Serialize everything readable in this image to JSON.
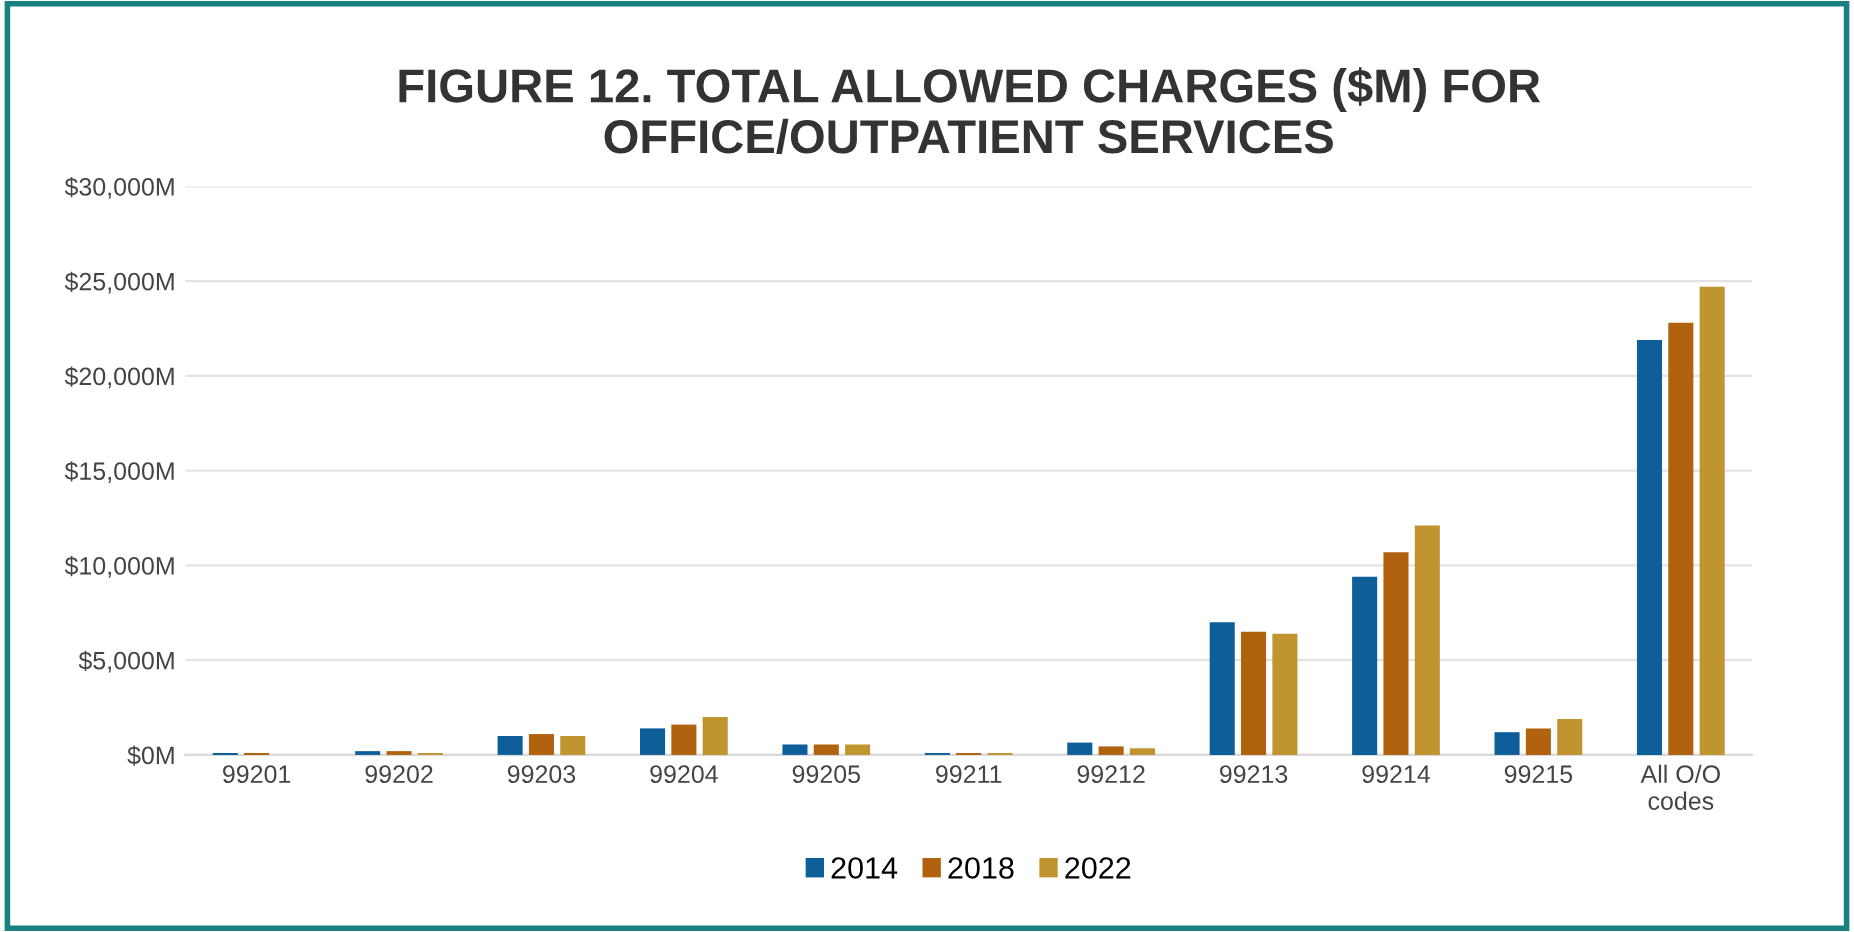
{
  "chart_data": {
    "type": "bar",
    "title": "FIGURE 12. TOTAL ALLOWED CHARGES ($M) FOR\nOFFICE/OUTPATIENT SERVICES",
    "categories": [
      "99201",
      "99202",
      "99203",
      "99204",
      "99205",
      "99211",
      "99212",
      "99213",
      "99214",
      "99215",
      "All O/O\ncodes"
    ],
    "series": [
      {
        "name": "2014",
        "color": "#0e5f99",
        "values": [
          100,
          200,
          1000,
          1400,
          550,
          100,
          650,
          7000,
          9400,
          1200,
          21900
        ]
      },
      {
        "name": "2018",
        "color": "#b0620f",
        "values": [
          100,
          200,
          1100,
          1600,
          550,
          100,
          450,
          6500,
          10700,
          1400,
          22800
        ]
      },
      {
        "name": "2022",
        "color": "#c0952f",
        "values": [
          0,
          100,
          1000,
          2000,
          550,
          100,
          350,
          6400,
          12100,
          1900,
          24700
        ]
      }
    ],
    "ylim": [
      0,
      30000
    ],
    "yticks": [
      {
        "value": 0,
        "label": "$0M"
      },
      {
        "value": 5000,
        "label": "$5,000M"
      },
      {
        "value": 10000,
        "label": "$10,000M"
      },
      {
        "value": 15000,
        "label": "$15,000M"
      },
      {
        "value": 20000,
        "label": "$20,000M"
      },
      {
        "value": 25000,
        "label": "$25,000M"
      },
      {
        "value": 30000,
        "label": "$30,000M"
      }
    ],
    "grid": "y",
    "legend": "bottom"
  }
}
